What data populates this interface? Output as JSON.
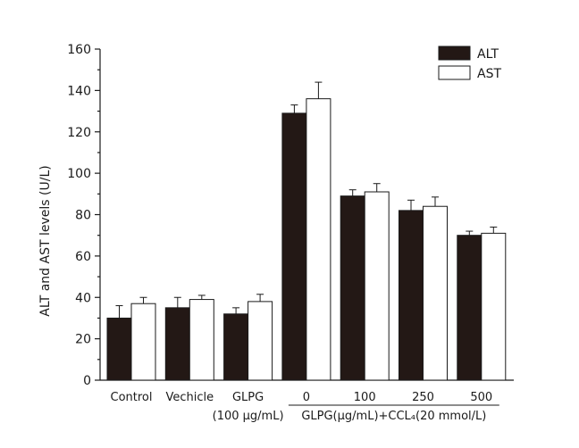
{
  "chart_data": {
    "type": "bar",
    "categories": [
      "Control",
      "Vechicle",
      "GLPG",
      "0",
      "100",
      "250",
      "500"
    ],
    "series": [
      {
        "name": "ALT",
        "values": [
          30,
          35,
          32,
          129,
          89,
          82,
          70
        ],
        "errors": [
          6,
          5,
          3,
          4,
          3,
          5,
          2
        ]
      },
      {
        "name": "AST",
        "values": [
          37,
          39,
          38,
          136,
          91,
          84,
          71
        ],
        "errors": [
          3,
          2,
          3.5,
          8,
          4,
          4.5,
          3
        ]
      }
    ],
    "series_colors": [
      "#231815",
      "#ffffff"
    ],
    "ylabel": "ALT and AST levels (U/L)",
    "xlabel": "",
    "ylim": [
      0,
      160
    ],
    "yticks": [
      0,
      20,
      40,
      60,
      80,
      100,
      120,
      140,
      160
    ],
    "legend_position": "top-right",
    "group_labels": [
      {
        "text": "(100 μg/mL)",
        "under": "GLPG",
        "underline": false
      },
      {
        "text": "GLPG(μg/mL)+CCL₄(20 mmol/L)",
        "under": "0-500",
        "underline": true
      }
    ],
    "grid": false
  }
}
